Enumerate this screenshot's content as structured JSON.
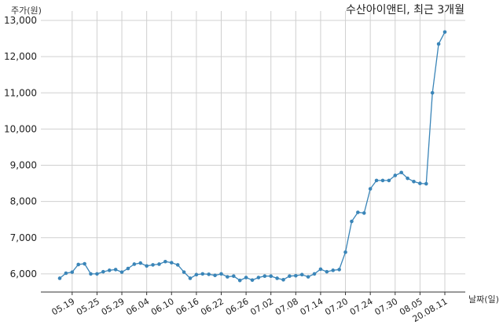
{
  "chart_data": {
    "type": "line",
    "title": "수산아이앤티, 최근 3개월",
    "ylabel": "주가(원)",
    "xlabel": "날짜(일)",
    "ylim": [
      5500,
      13000
    ],
    "yticks": [
      6000,
      7000,
      8000,
      9000,
      10000,
      11000,
      12000,
      13000
    ],
    "ytick_labels": [
      "6,000",
      "7,000",
      "8,000",
      "9,000",
      "10,000",
      "11,000",
      "12,000",
      "13,000"
    ],
    "xticks": [
      {
        "label": "05.19",
        "index": 2
      },
      {
        "label": "05.25",
        "index": 6
      },
      {
        "label": "05.29",
        "index": 10
      },
      {
        "label": "06.04",
        "index": 14
      },
      {
        "label": "06.10",
        "index": 18
      },
      {
        "label": "06.16",
        "index": 22
      },
      {
        "label": "06.22",
        "index": 26
      },
      {
        "label": "06.26",
        "index": 30
      },
      {
        "label": "07.02",
        "index": 34
      },
      {
        "label": "07.08",
        "index": 38
      },
      {
        "label": "07.14",
        "index": 42
      },
      {
        "label": "07.20",
        "index": 46
      },
      {
        "label": "07.24",
        "index": 50
      },
      {
        "label": "07.30",
        "index": 54
      },
      {
        "label": "08.05",
        "index": 58
      },
      {
        "label": "20.08.11",
        "index": 62
      }
    ],
    "grid": true,
    "color": "#3a85b8",
    "values": [
      5880,
      6020,
      6050,
      6260,
      6280,
      6000,
      6000,
      6060,
      6100,
      6120,
      6050,
      6150,
      6270,
      6300,
      6220,
      6250,
      6270,
      6340,
      6310,
      6250,
      6050,
      5880,
      5980,
      6000,
      5990,
      5960,
      6000,
      5920,
      5940,
      5820,
      5900,
      5830,
      5900,
      5940,
      5940,
      5880,
      5840,
      5940,
      5950,
      5980,
      5920,
      6000,
      6130,
      6060,
      6100,
      6120,
      6600,
      7450,
      7700,
      7680,
      8350,
      8580,
      8580,
      8580,
      8720,
      8800,
      8640,
      8550,
      8500,
      8490,
      11000,
      12350,
      12680
    ]
  }
}
